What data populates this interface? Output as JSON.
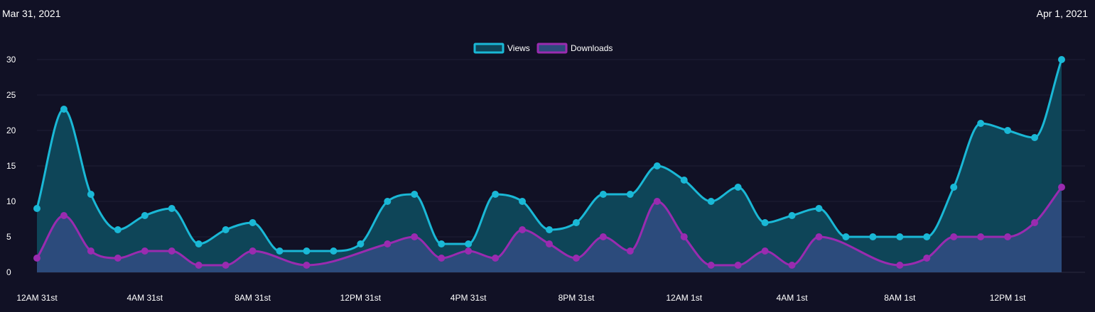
{
  "header": {
    "start_date": "Mar 31, 2021",
    "end_date": "Apr 1, 2021"
  },
  "colors": {
    "background": "#111125",
    "views_line": "#1ab8d6",
    "views_fill": "#0e4558",
    "downloads_line": "#9a2bb0",
    "downloads_fill": "#2c4b7c",
    "grid": "#1f1f35"
  },
  "chart_data": {
    "type": "area",
    "legend_position": "top-center",
    "grid": true,
    "ylim": [
      0,
      30
    ],
    "y_ticks": [
      "0",
      "5",
      "10",
      "15",
      "20",
      "25",
      "30"
    ],
    "y_tick_values": [
      0,
      5,
      10,
      15,
      20,
      25,
      30
    ],
    "x_tick_labels": [
      "12AM 31st",
      "4AM 31st",
      "8AM 31st",
      "12PM 31st",
      "4PM 31st",
      "8PM 31st",
      "12AM 1st",
      "4AM 1st",
      "8AM 1st",
      "12PM 1st"
    ],
    "x_tick_hours": [
      0,
      4,
      8,
      12,
      16,
      20,
      24,
      28,
      32,
      36
    ],
    "x_hours": [
      0,
      1,
      2,
      3,
      4,
      5,
      6,
      7,
      8,
      9,
      10,
      11,
      12,
      13,
      14,
      15,
      16,
      17,
      18,
      19,
      20,
      21,
      22,
      23,
      24,
      25,
      26,
      27,
      28,
      29,
      30,
      31,
      32,
      33,
      34,
      35,
      36,
      37,
      38
    ],
    "series": [
      {
        "name": "Views",
        "values": [
          9,
          23,
          11,
          6,
          8,
          9,
          4,
          6,
          7,
          3,
          3,
          3,
          4,
          10,
          11,
          4,
          4,
          11,
          10,
          6,
          7,
          11,
          11,
          15,
          13,
          10,
          12,
          7,
          8,
          9,
          5,
          5,
          5,
          5,
          12,
          21,
          20,
          19,
          30
        ]
      },
      {
        "name": "Downloads",
        "values": [
          2,
          8,
          3,
          2,
          3,
          3,
          1,
          1,
          3,
          null,
          1,
          null,
          null,
          4,
          5,
          2,
          3,
          2,
          6,
          4,
          2,
          5,
          3,
          10,
          5,
          1,
          1,
          3,
          1,
          5,
          null,
          null,
          1,
          2,
          5,
          5,
          5,
          7,
          12
        ]
      }
    ]
  }
}
